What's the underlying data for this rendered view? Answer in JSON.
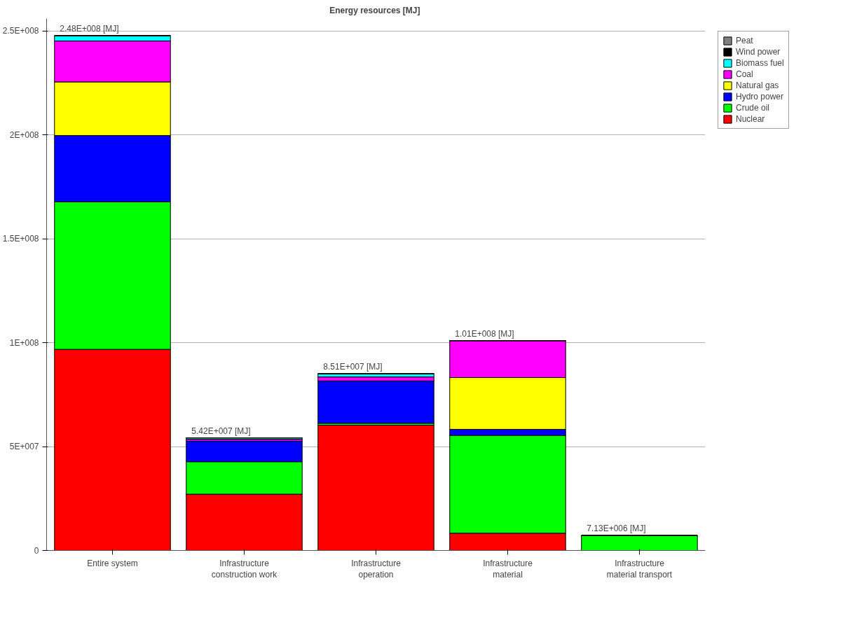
{
  "chart_data": {
    "type": "bar",
    "title": "Energy resources  [MJ]",
    "stacked": true,
    "categories": [
      "Entire system",
      "Infrastructure\nconstruction work",
      "Infrastructure\noperation",
      "Infrastructure\nmaterial",
      "Infrastructure\nmaterial transport"
    ],
    "series": [
      {
        "name": "Nuclear",
        "color": "#ff0000",
        "values": [
          96800000,
          27100000,
          60300000,
          8300000,
          0
        ]
      },
      {
        "name": "Crude oil",
        "color": "#00ff00",
        "values": [
          71000000,
          15600000,
          900000,
          47100000,
          7130000
        ]
      },
      {
        "name": "Hydro power",
        "color": "#0000ff",
        "values": [
          31900000,
          9900000,
          20400000,
          2900000,
          0
        ]
      },
      {
        "name": "Natural gas",
        "color": "#ffff00",
        "values": [
          25800000,
          0,
          0,
          24900000,
          0
        ]
      },
      {
        "name": "Coal",
        "color": "#ff00ff",
        "values": [
          19700000,
          900000,
          1900000,
          17800000,
          0
        ]
      },
      {
        "name": "Biomass fuel",
        "color": "#00ffff",
        "values": [
          2600000,
          700000,
          1600000,
          0,
          0
        ]
      },
      {
        "name": "Wind power",
        "color": "#000000",
        "values": [
          0,
          0,
          0,
          0,
          0
        ]
      },
      {
        "name": "Peat",
        "color": "#808080",
        "values": [
          0,
          0,
          0,
          0,
          0
        ]
      }
    ],
    "totals": [
      "2.48E+008 [MJ]",
      "5.42E+007 [MJ]",
      "8.51E+007 [MJ]",
      "1.01E+008 [MJ]",
      "7.13E+006 [MJ]"
    ],
    "ylim": [
      0,
      256000000
    ],
    "yticks": [
      {
        "value": 0,
        "label": "0"
      },
      {
        "value": 50000000,
        "label": "5E+007"
      },
      {
        "value": 100000000,
        "label": "1E+008"
      },
      {
        "value": 150000000,
        "label": "1.5E+008"
      },
      {
        "value": 200000000,
        "label": "2E+008"
      },
      {
        "value": 250000000,
        "label": "2.5E+008"
      }
    ],
    "grid": "y",
    "legend": "top right"
  }
}
